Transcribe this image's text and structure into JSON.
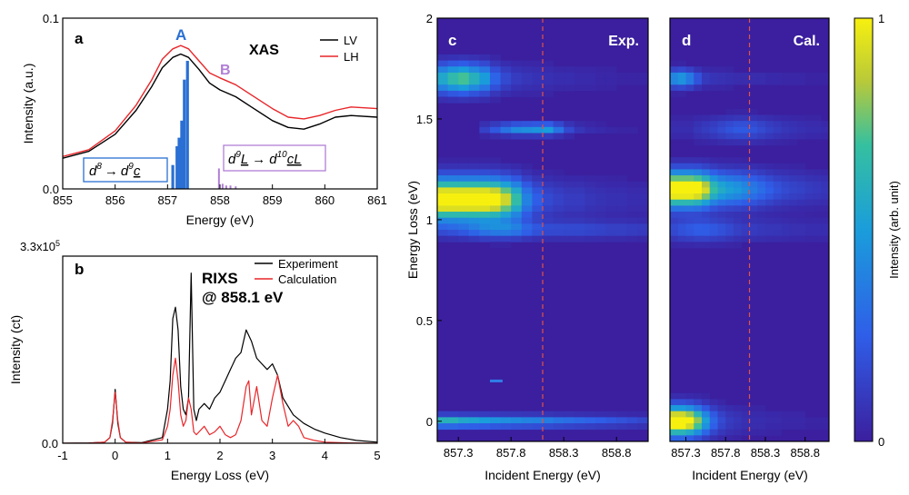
{
  "colors": {
    "lv": "#000000",
    "lh": "#e8262a",
    "peak_a": "#2a6fd3",
    "peak_b": "#b07fd6",
    "box_a": "#2a6fd3",
    "box_b": "#b07fd6",
    "dashed": "#e0524a",
    "heat_bg": "#3b1f9e"
  },
  "chart_data": [
    {
      "panel": "a",
      "type": "line",
      "title": "XAS",
      "xlabel": "Energy (eV)",
      "ylabel": "Intensity (a.u.)",
      "xlim": [
        855,
        861
      ],
      "ylim": [
        0,
        0.1
      ],
      "xticks": [
        "855",
        "856",
        "857",
        "858",
        "859",
        "860",
        "861"
      ],
      "yticks": [
        "0.0",
        "0.1"
      ],
      "legend": "top-right",
      "series": [
        {
          "name": "LV",
          "color": "#000000",
          "x": [
            855.0,
            855.5,
            856.0,
            856.4,
            856.7,
            856.9,
            857.1,
            857.25,
            857.4,
            857.6,
            857.8,
            858.0,
            858.3,
            858.6,
            859.0,
            859.3,
            859.6,
            859.9,
            860.2,
            860.5,
            861.0
          ],
          "y": [
            0.018,
            0.022,
            0.032,
            0.046,
            0.06,
            0.071,
            0.077,
            0.079,
            0.077,
            0.07,
            0.062,
            0.058,
            0.054,
            0.048,
            0.04,
            0.036,
            0.035,
            0.038,
            0.042,
            0.043,
            0.042
          ]
        },
        {
          "name": "LH",
          "color": "#e8262a",
          "x": [
            855.0,
            855.5,
            856.0,
            856.4,
            856.7,
            856.9,
            857.1,
            857.25,
            857.4,
            857.6,
            857.8,
            858.0,
            858.3,
            858.6,
            859.0,
            859.3,
            859.6,
            859.9,
            860.2,
            860.5,
            861.0
          ],
          "y": [
            0.019,
            0.023,
            0.034,
            0.049,
            0.064,
            0.076,
            0.082,
            0.084,
            0.082,
            0.075,
            0.068,
            0.065,
            0.061,
            0.055,
            0.047,
            0.042,
            0.041,
            0.043,
            0.046,
            0.048,
            0.047
          ]
        }
      ],
      "sticks_a": {
        "x": [
          857.1,
          857.18,
          857.22,
          857.27,
          857.32,
          857.38
        ],
        "y": [
          0.014,
          0.025,
          0.03,
          0.04,
          0.064,
          0.075
        ]
      },
      "sticks_b": {
        "x": [
          857.98,
          858.05,
          858.12,
          858.2,
          858.3
        ],
        "y": [
          0.012,
          0.003,
          0.002,
          0.002,
          0.0015
        ]
      },
      "annotations": {
        "peak_a": "A",
        "peak_b": "B"
      },
      "label": "a"
    },
    {
      "panel": "b",
      "type": "line",
      "title": "RIXS",
      "subtitle": "@ 858.1 eV",
      "xlabel": "Energy Loss (eV)",
      "ylabel": "Intensity (ct)",
      "xlim": [
        -1,
        5
      ],
      "ylim": [
        0,
        330000
      ],
      "xticks": [
        "-1",
        "0",
        "1",
        "2",
        "3",
        "4",
        "5"
      ],
      "ytick_bottom": "0.0",
      "ytick_top_base": "3.3x10",
      "ytick_top_exp": "5",
      "legend": "top-right",
      "series": [
        {
          "name": "Experiment",
          "color": "#000000",
          "x": [
            -1.0,
            -0.5,
            -0.2,
            -0.1,
            -0.05,
            0.0,
            0.05,
            0.1,
            0.2,
            0.5,
            0.9,
            1.0,
            1.05,
            1.1,
            1.15,
            1.2,
            1.25,
            1.3,
            1.35,
            1.4,
            1.45,
            1.5,
            1.55,
            1.6,
            1.7,
            1.8,
            1.9,
            2.0,
            2.1,
            2.2,
            2.3,
            2.4,
            2.5,
            2.6,
            2.7,
            2.8,
            2.9,
            3.0,
            3.1,
            3.2,
            3.4,
            3.6,
            3.8,
            4.0,
            4.3,
            4.6,
            5.0
          ],
          "y": [
            0,
            500,
            2000,
            10000,
            35000,
            95000,
            35000,
            10000,
            2000,
            1000,
            10000,
            60000,
            110000,
            220000,
            240000,
            200000,
            100000,
            60000,
            50000,
            80000,
            300000,
            60000,
            40000,
            60000,
            70000,
            60000,
            80000,
            90000,
            110000,
            130000,
            150000,
            160000,
            200000,
            180000,
            150000,
            140000,
            130000,
            140000,
            120000,
            80000,
            50000,
            35000,
            25000,
            18000,
            10000,
            5000,
            2000
          ]
        },
        {
          "name": "Calculation",
          "color": "#e8262a",
          "x": [
            -1.0,
            -0.5,
            -0.2,
            -0.1,
            -0.05,
            0.0,
            0.05,
            0.1,
            0.2,
            0.5,
            0.9,
            1.0,
            1.05,
            1.1,
            1.15,
            1.2,
            1.25,
            1.3,
            1.35,
            1.4,
            1.45,
            1.5,
            1.55,
            1.6,
            1.7,
            1.8,
            1.9,
            2.0,
            2.1,
            2.2,
            2.3,
            2.4,
            2.5,
            2.55,
            2.6,
            2.7,
            2.8,
            2.9,
            3.0,
            3.1,
            3.2,
            3.3,
            3.4,
            3.5,
            3.6,
            3.8,
            4.0,
            4.5,
            5.0
          ],
          "y": [
            0,
            300,
            2000,
            10000,
            40000,
            90000,
            40000,
            10000,
            2000,
            500,
            6000,
            30000,
            60000,
            120000,
            150000,
            110000,
            50000,
            30000,
            40000,
            80000,
            60000,
            20000,
            15000,
            20000,
            30000,
            15000,
            20000,
            30000,
            15000,
            10000,
            15000,
            40000,
            100000,
            110000,
            50000,
            100000,
            40000,
            30000,
            80000,
            120000,
            70000,
            30000,
            40000,
            30000,
            10000,
            5000,
            2000,
            500,
            0
          ]
        }
      ],
      "label": "b"
    },
    {
      "panel": "c",
      "type": "heatmap",
      "title": "Exp.",
      "xlabel": "Incident Energy (eV)",
      "ylabel": "Energy Loss (eV)",
      "xlim": [
        857.1,
        859.1
      ],
      "ylim": [
        -0.1,
        2.0
      ],
      "xticks": [
        "857.3",
        "857.8",
        "858.3",
        "858.8"
      ],
      "yticks": [
        "0",
        "0.5",
        "1",
        "1.5",
        "2"
      ],
      "dashed_x": 858.1,
      "features": [
        {
          "y": 1.1,
          "w": 0.07,
          "amp": [
            1,
            1,
            1,
            1,
            1,
            0.95,
            0.8,
            0.6,
            0.35,
            0.22,
            0.15,
            0.12,
            0.1,
            0.1,
            0.08,
            0.07,
            0.06,
            0.06,
            0.05,
            0.05
          ]
        },
        {
          "y": 1.45,
          "w": 0.02,
          "amp": [
            0,
            0,
            0,
            0,
            0.12,
            0.2,
            0.3,
            0.38,
            0.4,
            0.42,
            0.45,
            0.3,
            0.15,
            0.08,
            0.05,
            0.04,
            0.03,
            0.02,
            0.02,
            0.01
          ]
        },
        {
          "y": 1.7,
          "w": 0.05,
          "amp": [
            0.5,
            0.6,
            0.65,
            0.55,
            0.45,
            0.25,
            0.15,
            0.1,
            0.08,
            0.07,
            0.06,
            0.05,
            0.05,
            0.04,
            0.04,
            0.03,
            0.03,
            0.02,
            0.02,
            0.02
          ]
        },
        {
          "y": 0.0,
          "w": 0.02,
          "amp": [
            0.55,
            0.55,
            0.5,
            0.48,
            0.45,
            0.42,
            0.4,
            0.38,
            0.36,
            0.35,
            0.33,
            0.3,
            0.28,
            0.26,
            0.24,
            0.22,
            0.2,
            0.18,
            0.16,
            0.14
          ]
        },
        {
          "y": 0.95,
          "w": 0.03,
          "amp": [
            0.1,
            0.12,
            0.15,
            0.2,
            0.25,
            0.28,
            0.3,
            0.28,
            0.22,
            0.18,
            0.15,
            0.15,
            0.15,
            0.15,
            0.14,
            0.13,
            0.12,
            0.12,
            0.11,
            0.1
          ]
        }
      ],
      "label": "c"
    },
    {
      "panel": "d",
      "type": "heatmap",
      "title": "Cal.",
      "xlabel": "Incident Energy (eV)",
      "ylabel": "",
      "xlim": [
        857.1,
        859.1
      ],
      "ylim": [
        -0.1,
        2.0
      ],
      "xticks": [
        "857.3",
        "857.8",
        "858.3",
        "858.8"
      ],
      "dashed_x": 858.1,
      "features": [
        {
          "y": 1.15,
          "w": 0.06,
          "amp": [
            1,
            1,
            1,
            0.95,
            0.8,
            0.6,
            0.5,
            0.45,
            0.42,
            0.38,
            0.32,
            0.27,
            0.22,
            0.18,
            0.15,
            0.13,
            0.12,
            0.1,
            0.09,
            0.08
          ]
        },
        {
          "y": 1.7,
          "w": 0.03,
          "amp": [
            0.4,
            0.45,
            0.35,
            0.2,
            0.1,
            0.08,
            0.07,
            0.06,
            0.05,
            0.05,
            0.05,
            0.05,
            0.04,
            0.04,
            0.03,
            0.03,
            0.03,
            0.02,
            0.02,
            0.02
          ]
        },
        {
          "y": 1.45,
          "w": 0.04,
          "amp": [
            0.05,
            0.05,
            0.05,
            0.08,
            0.1,
            0.12,
            0.15,
            0.18,
            0.2,
            0.2,
            0.18,
            0.15,
            0.12,
            0.1,
            0.08,
            0.07,
            0.06,
            0.05,
            0.05,
            0.04
          ]
        },
        {
          "y": 0.0,
          "w": 0.05,
          "amp": [
            1,
            1,
            0.9,
            0.7,
            0.45,
            0.25,
            0.15,
            0.1,
            0.08,
            0.06,
            0.05,
            0.05,
            0.04,
            0.04,
            0.03,
            0.03,
            0.03,
            0.02,
            0.02,
            0.02
          ]
        },
        {
          "y": 0.95,
          "w": 0.04,
          "amp": [
            0.15,
            0.18,
            0.2,
            0.22,
            0.22,
            0.2,
            0.18,
            0.15,
            0.12,
            0.1,
            0.1,
            0.09,
            0.08,
            0.08,
            0.07,
            0.06,
            0.06,
            0.05,
            0.05,
            0.05
          ]
        }
      ],
      "label": "d"
    },
    {
      "panel": "colorbar",
      "type": "heatmap",
      "ylabel": "Intensity (arb. unit)",
      "ticks": [
        "0",
        "1"
      ]
    }
  ],
  "text": {
    "box_a_left": "d",
    "box_a_left_sup": "8",
    "box_a_arrow": "→",
    "box_a_right": "d",
    "box_a_right_sup": "9",
    "box_a_right_sub": "c",
    "box_b_left": "d",
    "box_b_left_sup": "9",
    "box_b_left_sub": "L",
    "box_b_arrow": "→",
    "box_b_right": "d",
    "box_b_right_sup": "10",
    "box_b_right_sub": "cL"
  }
}
